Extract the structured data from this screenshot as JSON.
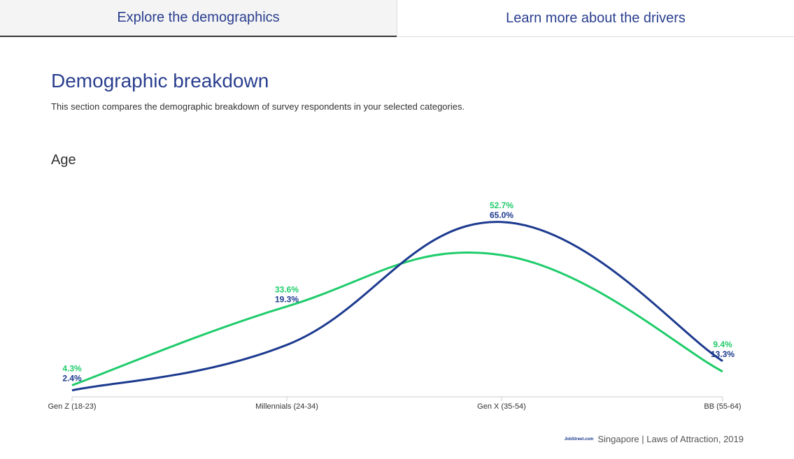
{
  "tabs": [
    {
      "label": "Explore the demographics",
      "active": true
    },
    {
      "label": "Learn more about the drivers",
      "active": false
    }
  ],
  "title": "Demographic breakdown",
  "description": "This section compares the demographic breakdown of survey respondents in your selected categories.",
  "section": "Age",
  "footer": {
    "logo": "JobStreet.com",
    "text": "Singapore | Laws of Attraction, 2019"
  },
  "chart_data": {
    "type": "line",
    "categories": [
      "Gen Z (18-23)",
      "Millennials (24-34)",
      "Gen X (35-54)",
      "BB (55-64)"
    ],
    "series": [
      {
        "values": [
          4.3,
          33.6,
          52.7,
          9.4
        ],
        "labels": [
          "4.3%",
          "33.6%",
          "52.7%",
          "9.4%"
        ],
        "color": "#1fcc6b"
      },
      {
        "values": [
          2.4,
          19.3,
          65.0,
          13.3
        ],
        "labels": [
          "2.4%",
          "19.3%",
          "65.0%",
          "13.3%"
        ],
        "color": "#1c3a8f"
      }
    ],
    "smooth": true,
    "grid": false
  }
}
